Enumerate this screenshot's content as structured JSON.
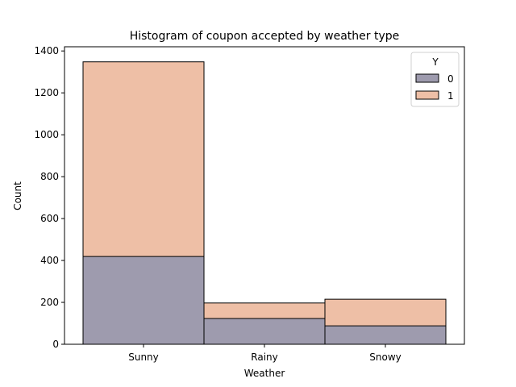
{
  "chart_data": {
    "type": "bar",
    "stacked": false,
    "overlay": true,
    "title": "Histogram of coupon accepted by weather type",
    "xlabel": "Weather",
    "ylabel": "Count",
    "categories": [
      "Sunny",
      "Rainy",
      "Snowy"
    ],
    "ylim": [
      0,
      1420
    ],
    "yticks": [
      0,
      200,
      400,
      600,
      800,
      1000,
      1200,
      1400
    ],
    "grid": false,
    "legend": {
      "title": "Y",
      "position": "top-right"
    },
    "series": [
      {
        "name": "0",
        "values": [
          419,
          123,
          88
        ],
        "color": "#9e9bae"
      },
      {
        "name": "1",
        "values": [
          1348,
          197,
          215
        ],
        "color": "#eebfa6"
      }
    ],
    "overlap_color": "#9e9bae",
    "edge_color": "#000000"
  }
}
